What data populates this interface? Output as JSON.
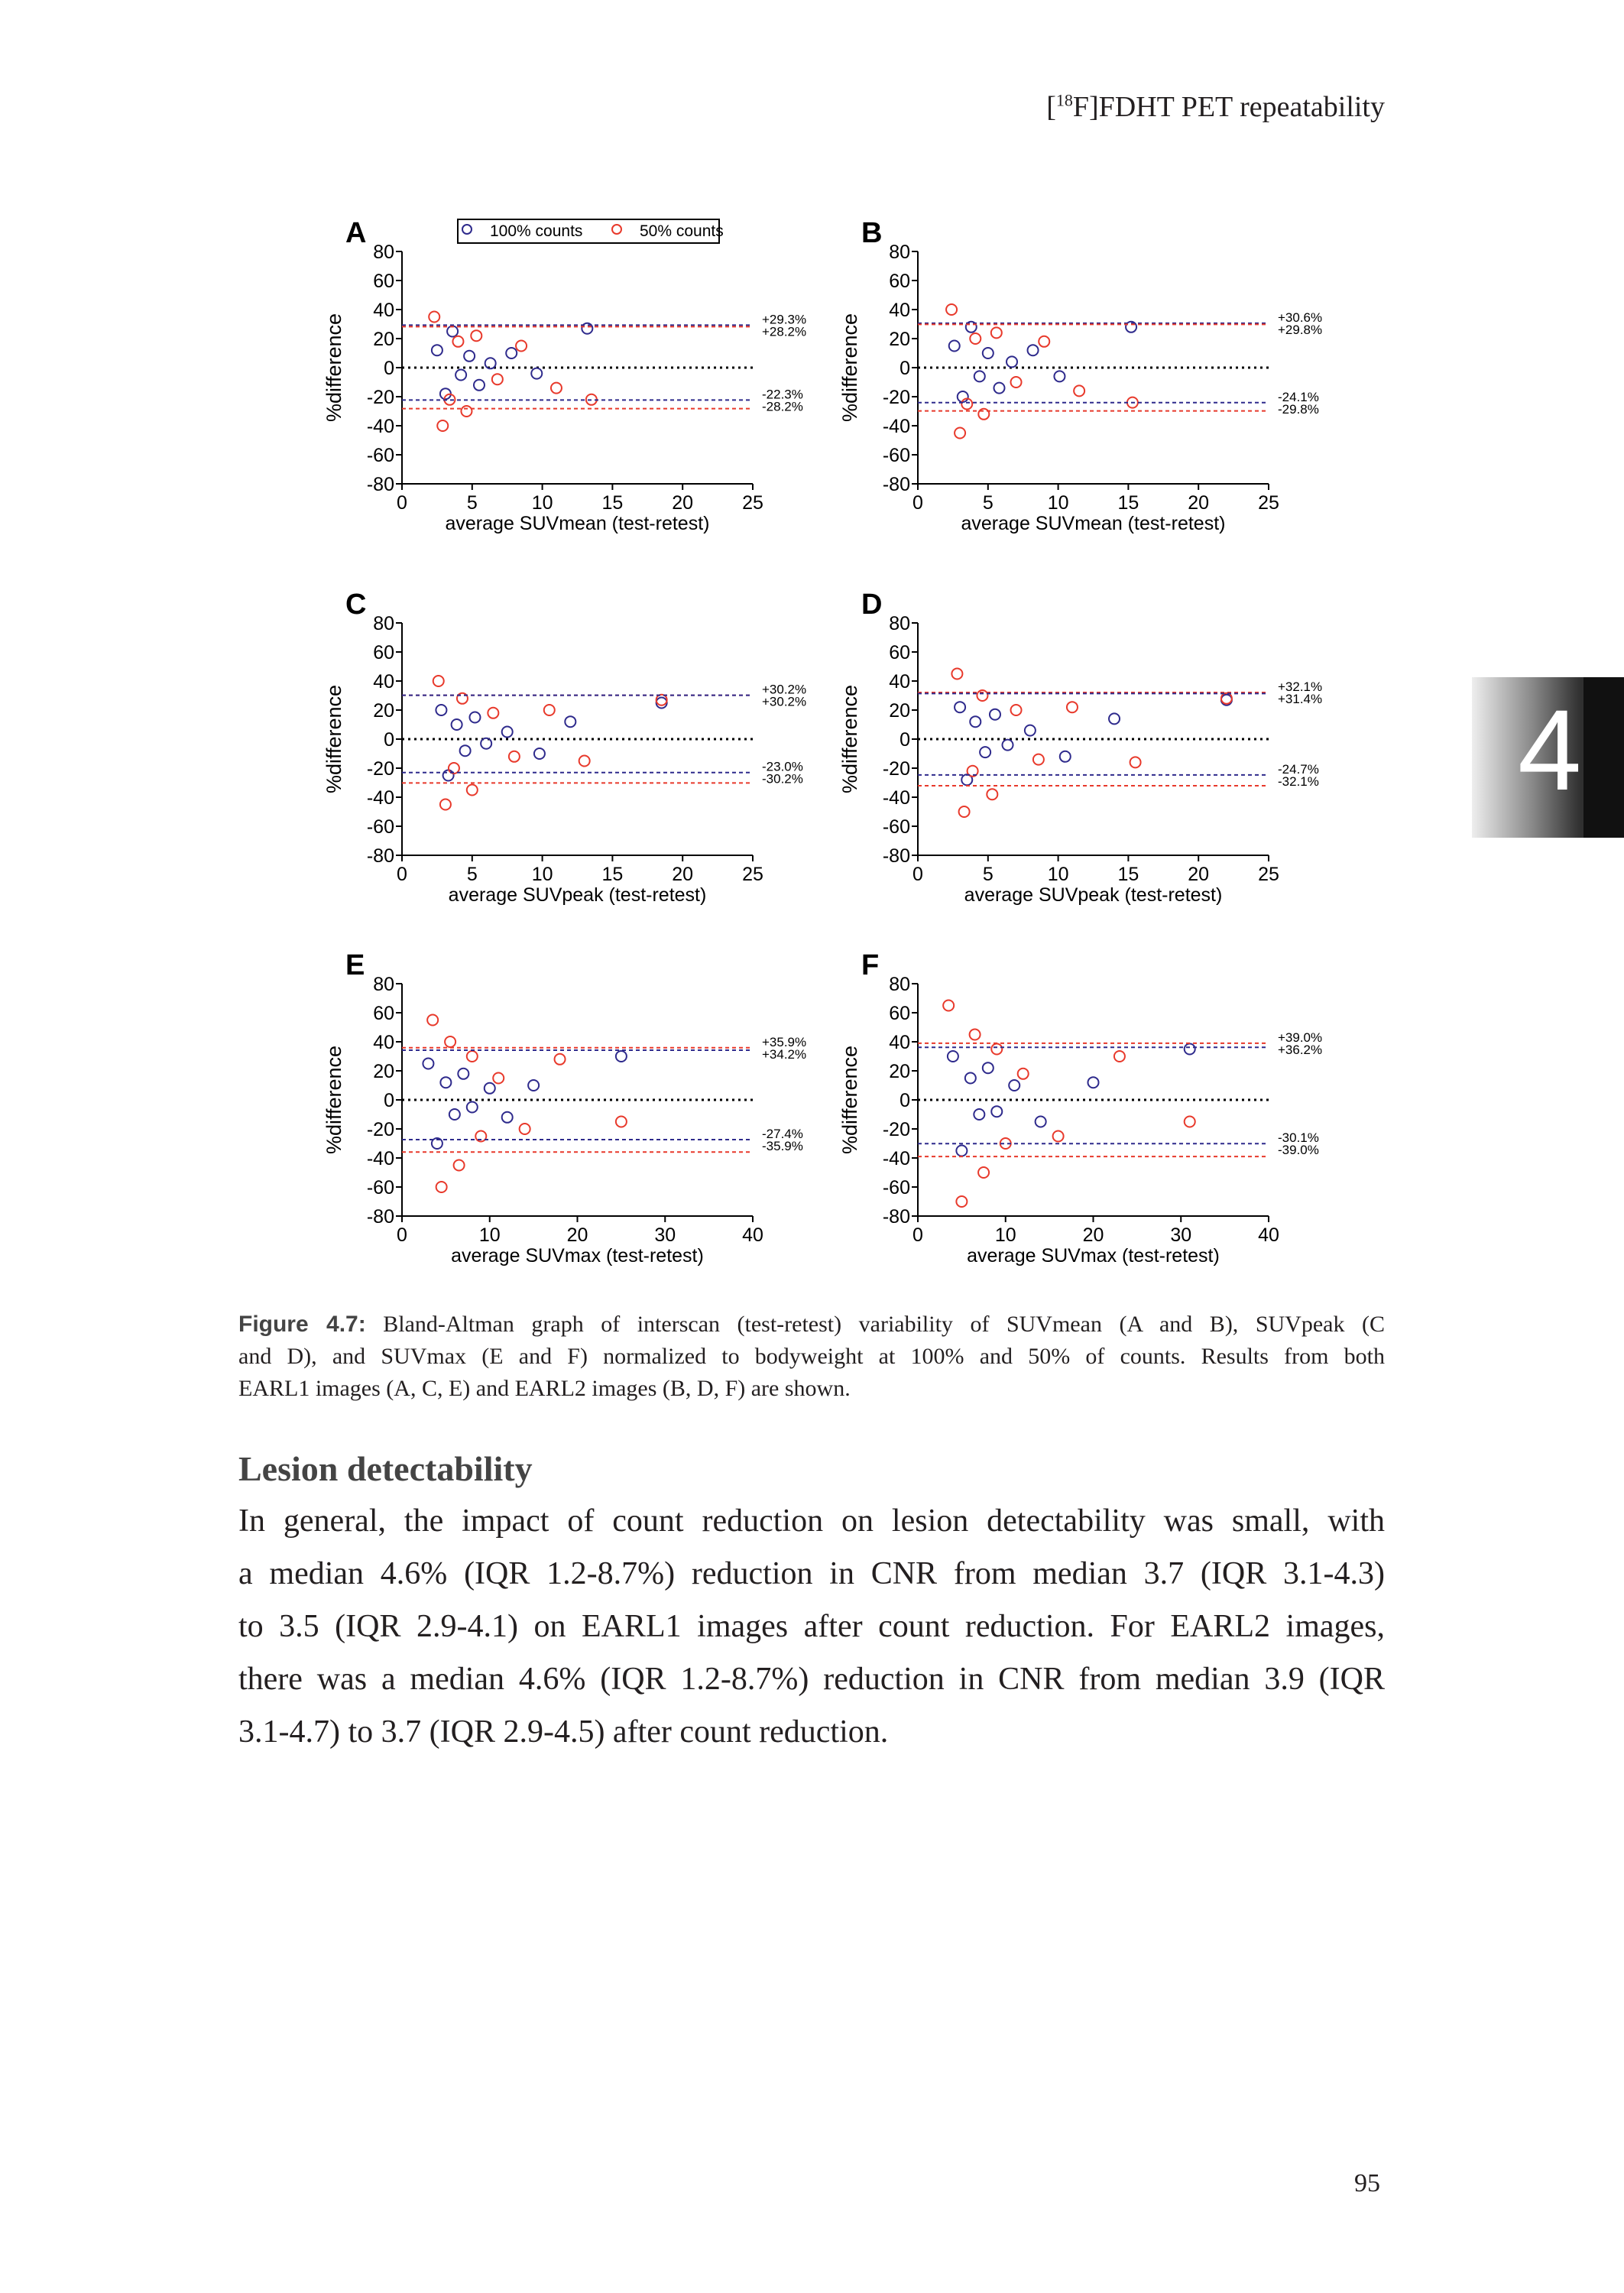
{
  "header": {
    "prefix": "[",
    "superscript": "18",
    "text": "F]FDHT PET repeatability"
  },
  "side_tab": {
    "text": "4"
  },
  "chart_data": [
    {
      "type": "scatter",
      "panel": "A",
      "xlabel": "average SUVmean (test-retest)",
      "ylabel": "%difference",
      "xlim": [
        0,
        25
      ],
      "xticks": [
        0,
        5,
        10,
        15,
        20,
        25
      ],
      "ylim": [
        -80,
        80
      ],
      "yticks": [
        -80,
        -60,
        -40,
        -20,
        0,
        20,
        40,
        60,
        80
      ],
      "legend": "top",
      "series": [
        {
          "name": "100% counts",
          "color": "#2e2a8c",
          "x": [
            2.5,
            3.1,
            3.6,
            4.2,
            4.8,
            5.5,
            6.3,
            7.8,
            9.6,
            13.2
          ],
          "y": [
            12,
            -18,
            25,
            -5,
            8,
            -12,
            3,
            10,
            -4,
            27
          ]
        },
        {
          "name": "50% counts",
          "color": "#e8392b",
          "x": [
            2.3,
            2.9,
            3.4,
            4.0,
            4.6,
            5.3,
            6.8,
            8.5,
            11.0,
            13.5
          ],
          "y": [
            35,
            -40,
            -22,
            18,
            -30,
            22,
            -8,
            15,
            -14,
            -22
          ]
        }
      ],
      "limits": [
        {
          "value": 29.3,
          "label": "+29.3%",
          "color": "#2e2a8c"
        },
        {
          "value": 28.2,
          "label": "+28.2%",
          "color": "#e8392b"
        },
        {
          "value": -22.3,
          "label": "-22.3%",
          "color": "#2e2a8c"
        },
        {
          "value": -28.2,
          "label": "-28.2%",
          "color": "#e8392b"
        }
      ]
    },
    {
      "type": "scatter",
      "panel": "B",
      "xlabel": "average SUVmean (test-retest)",
      "ylabel": "%difference",
      "xlim": [
        0,
        25
      ],
      "xticks": [
        0,
        5,
        10,
        15,
        20,
        25
      ],
      "ylim": [
        -80,
        80
      ],
      "yticks": [
        -80,
        -60,
        -40,
        -20,
        0,
        20,
        40,
        60,
        80
      ],
      "series": [
        {
          "color": "#2e2a8c",
          "x": [
            2.6,
            3.2,
            3.8,
            4.4,
            5.0,
            5.8,
            6.7,
            8.2,
            10.1,
            15.2
          ],
          "y": [
            15,
            -20,
            28,
            -6,
            10,
            -14,
            4,
            12,
            -6,
            28
          ]
        },
        {
          "color": "#e8392b",
          "x": [
            2.4,
            3.0,
            3.5,
            4.1,
            4.7,
            5.6,
            7.0,
            9.0,
            11.5,
            15.3
          ],
          "y": [
            40,
            -45,
            -25,
            20,
            -32,
            24,
            -10,
            18,
            -16,
            -24
          ]
        }
      ],
      "limits": [
        {
          "value": 30.6,
          "label": "+30.6%",
          "color": "#2e2a8c"
        },
        {
          "value": 29.8,
          "label": "+29.8%",
          "color": "#e8392b"
        },
        {
          "value": -24.1,
          "label": "-24.1%",
          "color": "#2e2a8c"
        },
        {
          "value": -29.8,
          "label": "-29.8%",
          "color": "#e8392b"
        }
      ]
    },
    {
      "type": "scatter",
      "panel": "C",
      "xlabel": "average SUVpeak (test-retest)",
      "ylabel": "%difference",
      "xlim": [
        0,
        25
      ],
      "xticks": [
        0,
        5,
        10,
        15,
        20,
        25
      ],
      "ylim": [
        -80,
        80
      ],
      "yticks": [
        -80,
        -60,
        -40,
        -20,
        0,
        20,
        40,
        60,
        80
      ],
      "series": [
        {
          "color": "#2e2a8c",
          "x": [
            2.8,
            3.3,
            3.9,
            4.5,
            5.2,
            6.0,
            7.5,
            9.8,
            12.0,
            18.5
          ],
          "y": [
            20,
            -25,
            10,
            -8,
            15,
            -3,
            5,
            -10,
            12,
            25
          ]
        },
        {
          "color": "#e8392b",
          "x": [
            2.6,
            3.1,
            3.7,
            4.3,
            5.0,
            6.5,
            8.0,
            10.5,
            13.0,
            18.5
          ],
          "y": [
            40,
            -45,
            -20,
            28,
            -35,
            18,
            -12,
            20,
            -15,
            27
          ]
        }
      ],
      "limits": [
        {
          "value": 30.2,
          "label": "+30.2%",
          "color": "#e8392b"
        },
        {
          "value": 30.2,
          "label": "+30.2%",
          "color": "#2e2a8c"
        },
        {
          "value": -23,
          "label": "-23.0%",
          "color": "#2e2a8c"
        },
        {
          "value": -30.2,
          "label": "-30.2%",
          "color": "#e8392b"
        }
      ]
    },
    {
      "type": "scatter",
      "panel": "D",
      "xlabel": "average SUVpeak (test-retest)",
      "ylabel": "%difference",
      "xlim": [
        0,
        25
      ],
      "xticks": [
        0,
        5,
        10,
        15,
        20,
        25
      ],
      "ylim": [
        -80,
        80
      ],
      "yticks": [
        -80,
        -60,
        -40,
        -20,
        0,
        20,
        40,
        60,
        80
      ],
      "series": [
        {
          "color": "#2e2a8c",
          "x": [
            3.0,
            3.5,
            4.1,
            4.8,
            5.5,
            6.4,
            8.0,
            10.5,
            14.0,
            22.0
          ],
          "y": [
            22,
            -28,
            12,
            -9,
            17,
            -4,
            6,
            -12,
            14,
            27
          ]
        },
        {
          "color": "#e8392b",
          "x": [
            2.8,
            3.3,
            3.9,
            4.6,
            5.3,
            7.0,
            8.6,
            11.0,
            15.5,
            22.0
          ],
          "y": [
            45,
            -50,
            -22,
            30,
            -38,
            20,
            -14,
            22,
            -16,
            28
          ]
        }
      ],
      "limits": [
        {
          "value": 32.1,
          "label": "+32.1%",
          "color": "#e8392b"
        },
        {
          "value": 31.4,
          "label": "+31.4%",
          "color": "#2e2a8c"
        },
        {
          "value": -24.7,
          "label": "-24.7%",
          "color": "#2e2a8c"
        },
        {
          "value": -32.1,
          "label": "-32.1%",
          "color": "#e8392b"
        }
      ]
    },
    {
      "type": "scatter",
      "panel": "E",
      "xlabel": "average SUVmax (test-retest)",
      "ylabel": "%difference",
      "xlim": [
        0,
        40
      ],
      "xticks": [
        0,
        10,
        20,
        30,
        40
      ],
      "ylim": [
        -80,
        80
      ],
      "yticks": [
        -80,
        -60,
        -40,
        -20,
        0,
        20,
        40,
        60,
        80
      ],
      "series": [
        {
          "color": "#2e2a8c",
          "x": [
            3,
            4,
            5,
            6,
            7,
            8,
            10,
            12,
            15,
            25
          ],
          "y": [
            25,
            -30,
            12,
            -10,
            18,
            -5,
            8,
            -12,
            10,
            30
          ]
        },
        {
          "color": "#e8392b",
          "x": [
            3.5,
            4.5,
            5.5,
            6.5,
            8,
            9,
            11,
            14,
            18,
            25
          ],
          "y": [
            55,
            -60,
            40,
            -45,
            30,
            -25,
            15,
            -20,
            28,
            -15
          ]
        }
      ],
      "limits": [
        {
          "value": 35.9,
          "label": "+35.9%",
          "color": "#e8392b"
        },
        {
          "value": 34.2,
          "label": "+34.2%",
          "color": "#2e2a8c"
        },
        {
          "value": -27.4,
          "label": "-27.4%",
          "color": "#2e2a8c"
        },
        {
          "value": -35.9,
          "label": "-35.9%",
          "color": "#e8392b"
        }
      ]
    },
    {
      "type": "scatter",
      "panel": "F",
      "xlabel": "average SUVmax (test-retest)",
      "ylabel": "%difference",
      "xlim": [
        0,
        40
      ],
      "xticks": [
        0,
        10,
        20,
        30,
        40
      ],
      "ylim": [
        -80,
        80
      ],
      "yticks": [
        -80,
        -60,
        -40,
        -20,
        0,
        20,
        40,
        60,
        80
      ],
      "series": [
        {
          "color": "#2e2a8c",
          "x": [
            4,
            5,
            6,
            7,
            8,
            9,
            11,
            14,
            20,
            31
          ],
          "y": [
            30,
            -35,
            15,
            -10,
            22,
            -8,
            10,
            -15,
            12,
            35
          ]
        },
        {
          "color": "#e8392b",
          "x": [
            3.5,
            5,
            6.5,
            7.5,
            9,
            10,
            12,
            16,
            23,
            31
          ],
          "y": [
            65,
            -70,
            45,
            -50,
            35,
            -30,
            18,
            -25,
            30,
            -15
          ]
        }
      ],
      "limits": [
        {
          "value": 39,
          "label": "+39.0%",
          "color": "#e8392b"
        },
        {
          "value": 36.2,
          "label": "+36.2%",
          "color": "#2e2a8c"
        },
        {
          "value": -30.1,
          "label": "-30.1%",
          "color": "#2e2a8c"
        },
        {
          "value": -39,
          "label": "-39.0%",
          "color": "#e8392b"
        }
      ]
    }
  ],
  "caption": {
    "label": "Figure 4.7:",
    "lines": [
      " Bland-Altman graph of interscan (test-retest) variability of SUVmean (A and B), SUVpeak (C",
      "and D), and SUVmax (E and F) normalized to bodyweight at 100% and 50% of counts. Results from both",
      "EARL1 images (A, C, E) and EARL2 images (B, D, F) are shown."
    ]
  },
  "section": {
    "heading": "Lesion detectability",
    "lines": [
      "In general, the impact of count reduction on lesion detectability was small, with",
      "a median 4.6% (IQR 1.2-8.7%) reduction in CNR from median 3.7 (IQR 3.1-4.3)",
      "to 3.5 (IQR 2.9-4.1) on EARL1 images after count reduction. For EARL2 images,",
      "there was a median 4.6% (IQR 1.2-8.7%) reduction in CNR from median 3.9 (IQR",
      "3.1-4.7) to 3.7 (IQR 2.9-4.5) after count reduction."
    ]
  },
  "page_number": "95"
}
